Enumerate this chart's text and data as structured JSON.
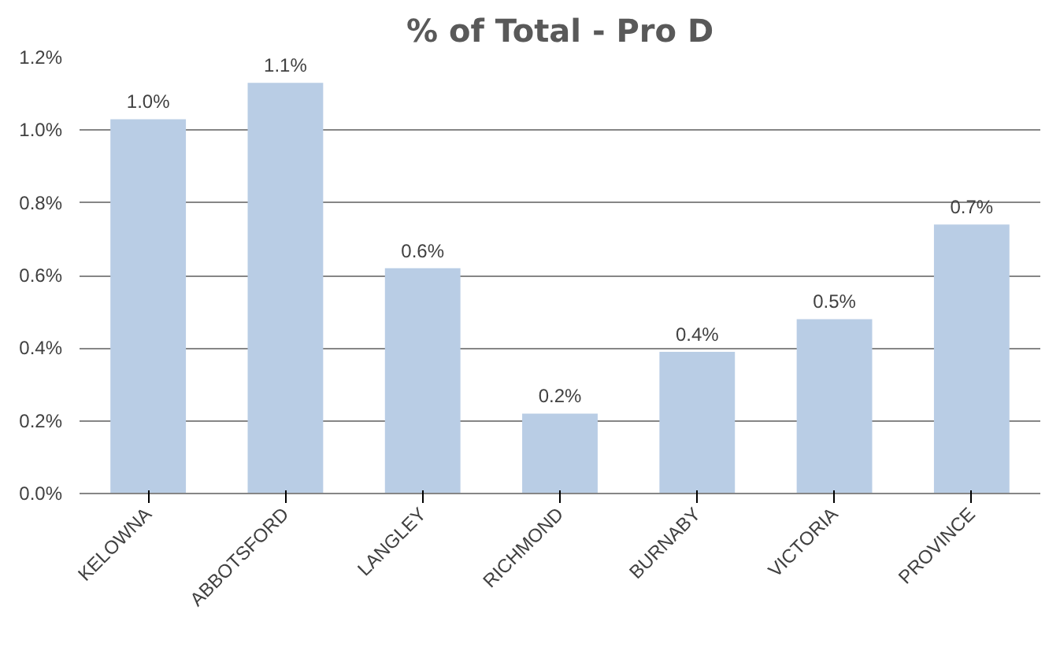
{
  "chart_data": {
    "type": "bar",
    "title": "% of Total - Pro D",
    "categories": [
      "KELOWNA",
      "ABBOTSFORD",
      "LANGLEY",
      "RICHMOND",
      "BURNABY",
      "VICTORIA",
      "PROVINCE"
    ],
    "values": [
      1.03,
      1.13,
      0.62,
      0.22,
      0.39,
      0.48,
      0.74
    ],
    "value_labels": [
      "1.0%",
      "1.1%",
      "0.6%",
      "0.2%",
      "0.4%",
      "0.5%",
      "0.7%"
    ],
    "color": "#b9cde5",
    "ylim": [
      0,
      1.2
    ],
    "yticks": [
      {
        "value": 0,
        "label": "0.0%"
      },
      {
        "value": 0.2,
        "label": "0.2%"
      },
      {
        "value": 0.4,
        "label": "0.4%"
      },
      {
        "value": 0.6,
        "label": "0.6%"
      },
      {
        "value": 0.8,
        "label": "0.8%"
      },
      {
        "value": 1.0,
        "label": "1.0%"
      },
      {
        "value": 1.2,
        "label": "1.2%"
      }
    ],
    "grid": "y"
  }
}
